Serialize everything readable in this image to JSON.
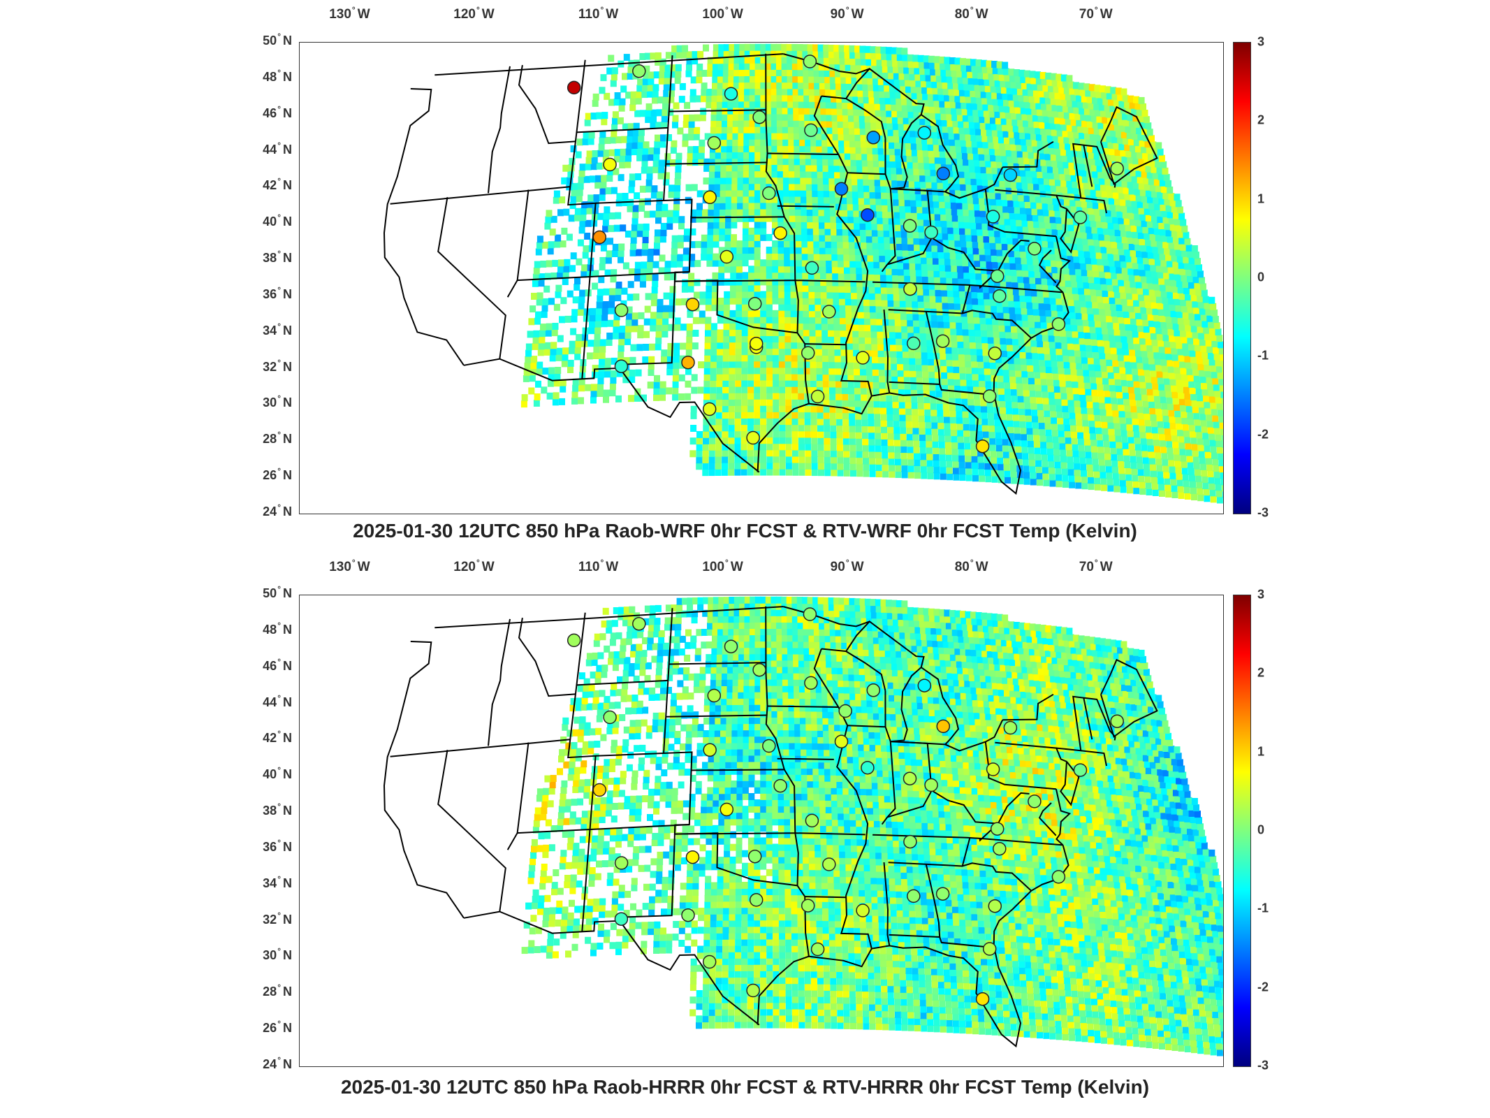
{
  "panels": [
    {
      "id": "top",
      "title": "2025-01-30 12UTC 850 hPa Raob-WRF 0hr FCST & RTV-WRF 0hr FCST Temp (Kelvin)",
      "stations": [
        {
          "lon": -111.6,
          "lat": 47.5,
          "diff": 2.6
        },
        {
          "lon": -108.2,
          "lat": 43.1,
          "diff": 0.7
        },
        {
          "lon": -108.5,
          "lat": 39.1,
          "diff": 1.4
        },
        {
          "lon": -106.6,
          "lat": 35.0,
          "diff": 0.1
        },
        {
          "lon": -106.4,
          "lat": 31.9,
          "diff": -0.5
        },
        {
          "lon": -106.6,
          "lat": 48.2,
          "diff": 0.1
        },
        {
          "lon": -99.3,
          "lat": 46.8,
          "diff": -0.6
        },
        {
          "lon": -97.1,
          "lat": 45.5,
          "diff": 0.0
        },
        {
          "lon": -100.5,
          "lat": 44.1,
          "diff": 0.2
        },
        {
          "lon": -100.7,
          "lat": 41.1,
          "diff": 0.8
        },
        {
          "lon": -96.4,
          "lat": 41.3,
          "diff": 0.0
        },
        {
          "lon": -99.4,
          "lat": 37.8,
          "diff": 0.6
        },
        {
          "lon": -95.6,
          "lat": 39.1,
          "diff": 0.8
        },
        {
          "lon": -101.7,
          "lat": 35.2,
          "diff": 1.0
        },
        {
          "lon": -97.4,
          "lat": 35.2,
          "diff": 0.0
        },
        {
          "lon": -101.9,
          "lat": 32.0,
          "diff": 1.2
        },
        {
          "lon": -97.3,
          "lat": 32.8,
          "diff": 0.7
        },
        {
          "lon": -100.4,
          "lat": 29.4,
          "diff": 0.6
        },
        {
          "lon": -97.5,
          "lat": 27.8,
          "diff": 0.6
        },
        {
          "lon": -93.2,
          "lat": 44.8,
          "diff": -0.1
        },
        {
          "lon": -93.1,
          "lat": 48.6,
          "diff": 0.1
        },
        {
          "lon": -91.1,
          "lat": 41.6,
          "diff": -1.5
        },
        {
          "lon": -89.3,
          "lat": 40.2,
          "diff": -1.8
        },
        {
          "lon": -88.5,
          "lat": 44.5,
          "diff": -1.3
        },
        {
          "lon": -93.4,
          "lat": 37.2,
          "diff": -0.4
        },
        {
          "lon": -92.3,
          "lat": 34.8,
          "diff": 0.2
        },
        {
          "lon": -93.8,
          "lat": 32.5,
          "diff": 0.1
        },
        {
          "lon": -93.2,
          "lat": 30.1,
          "diff": 0.4
        },
        {
          "lon": -90.1,
          "lat": 32.3,
          "diff": 0.6
        },
        {
          "lon": -86.6,
          "lat": 33.2,
          "diff": -0.3
        },
        {
          "lon": -86.6,
          "lat": 36.2,
          "diff": 0.4
        },
        {
          "lon": -84.6,
          "lat": 44.9,
          "diff": -0.8
        },
        {
          "lon": -83.5,
          "lat": 42.7,
          "diff": -1.5
        },
        {
          "lon": -86.3,
          "lat": 39.7,
          "diff": 0.0
        },
        {
          "lon": -84.8,
          "lat": 39.4,
          "diff": -0.4
        },
        {
          "lon": -84.6,
          "lat": 33.4,
          "diff": 0.2
        },
        {
          "lon": -80.2,
          "lat": 40.5,
          "diff": -0.6
        },
        {
          "lon": -78.5,
          "lat": 42.9,
          "diff": -1.0
        },
        {
          "lon": -80.4,
          "lat": 37.2,
          "diff": -0.1
        },
        {
          "lon": -80.4,
          "lat": 36.1,
          "diff": -0.2
        },
        {
          "lon": -81.1,
          "lat": 32.9,
          "diff": 0.4
        },
        {
          "lon": -81.7,
          "lat": 30.5,
          "diff": 0.1
        },
        {
          "lon": -82.4,
          "lat": 27.7,
          "diff": 0.9
        },
        {
          "lon": -77.5,
          "lat": 38.9,
          "diff": 0.0
        },
        {
          "lon": -76.5,
          "lat": 34.8,
          "diff": 0.1
        },
        {
          "lon": -73.8,
          "lat": 40.9,
          "diff": -0.2
        },
        {
          "lon": -70.3,
          "lat": 43.9,
          "diff": 0.2
        },
        {
          "lon": -97.3,
          "lat": 33.0,
          "diff": 0.7
        }
      ]
    },
    {
      "id": "bottom",
      "title": "2025-01-30 12UTC 850 hPa Raob-HRRR 0hr FCST & RTV-HRRR 0hr FCST Temp (Kelvin)",
      "stations": [
        {
          "lon": -111.6,
          "lat": 47.5,
          "diff": 0.2
        },
        {
          "lon": -108.2,
          "lat": 43.1,
          "diff": 0.1
        },
        {
          "lon": -108.5,
          "lat": 39.1,
          "diff": 1.0
        },
        {
          "lon": -106.6,
          "lat": 35.0,
          "diff": 0.2
        },
        {
          "lon": -106.4,
          "lat": 31.9,
          "diff": -0.4
        },
        {
          "lon": -106.6,
          "lat": 48.2,
          "diff": 0.2
        },
        {
          "lon": -99.3,
          "lat": 46.8,
          "diff": 0.1
        },
        {
          "lon": -97.1,
          "lat": 45.5,
          "diff": 0.2
        },
        {
          "lon": -100.5,
          "lat": 44.1,
          "diff": 0.3
        },
        {
          "lon": -100.7,
          "lat": 41.1,
          "diff": 0.5
        },
        {
          "lon": -96.4,
          "lat": 41.3,
          "diff": 0.0
        },
        {
          "lon": -99.4,
          "lat": 37.8,
          "diff": 0.7
        },
        {
          "lon": -95.6,
          "lat": 39.1,
          "diff": 0.1
        },
        {
          "lon": -101.7,
          "lat": 35.2,
          "diff": 0.8
        },
        {
          "lon": -97.4,
          "lat": 35.2,
          "diff": 0.1
        },
        {
          "lon": -101.9,
          "lat": 32.0,
          "diff": 0.1
        },
        {
          "lon": -97.3,
          "lat": 32.8,
          "diff": 0.1
        },
        {
          "lon": -100.4,
          "lat": 29.4,
          "diff": 0.2
        },
        {
          "lon": -97.5,
          "lat": 27.8,
          "diff": 0.3
        },
        {
          "lon": -93.2,
          "lat": 44.8,
          "diff": 0.2
        },
        {
          "lon": -93.1,
          "lat": 48.6,
          "diff": 0.1
        },
        {
          "lon": -91.1,
          "lat": 41.6,
          "diff": 0.6
        },
        {
          "lon": -89.3,
          "lat": 40.2,
          "diff": -0.5
        },
        {
          "lon": -88.5,
          "lat": 44.5,
          "diff": 0.1
        },
        {
          "lon": -93.4,
          "lat": 37.2,
          "diff": 0.2
        },
        {
          "lon": -92.3,
          "lat": 34.8,
          "diff": 0.3
        },
        {
          "lon": -93.8,
          "lat": 32.5,
          "diff": 0.2
        },
        {
          "lon": -93.2,
          "lat": 30.1,
          "diff": 0.2
        },
        {
          "lon": -90.1,
          "lat": 32.3,
          "diff": 0.5
        },
        {
          "lon": -86.6,
          "lat": 33.2,
          "diff": 0.1
        },
        {
          "lon": -86.6,
          "lat": 36.2,
          "diff": 0.1
        },
        {
          "lon": -84.6,
          "lat": 44.9,
          "diff": -0.8
        },
        {
          "lon": -83.5,
          "lat": 42.7,
          "diff": 1.1
        },
        {
          "lon": -86.3,
          "lat": 39.7,
          "diff": 0.3
        },
        {
          "lon": -84.8,
          "lat": 39.4,
          "diff": 0.2
        },
        {
          "lon": -84.6,
          "lat": 33.4,
          "diff": 0.1
        },
        {
          "lon": -80.2,
          "lat": 40.5,
          "diff": 0.5
        },
        {
          "lon": -78.5,
          "lat": 42.9,
          "diff": 0.2
        },
        {
          "lon": -80.4,
          "lat": 37.2,
          "diff": 0.1
        },
        {
          "lon": -80.4,
          "lat": 36.1,
          "diff": 0.2
        },
        {
          "lon": -81.1,
          "lat": 32.9,
          "diff": 0.3
        },
        {
          "lon": -81.7,
          "lat": 30.5,
          "diff": 0.3
        },
        {
          "lon": -82.4,
          "lat": 27.7,
          "diff": 0.9
        },
        {
          "lon": -77.5,
          "lat": 38.9,
          "diff": 0.1
        },
        {
          "lon": -76.5,
          "lat": 34.8,
          "diff": 0.1
        },
        {
          "lon": -73.8,
          "lat": 40.9,
          "diff": -0.1
        },
        {
          "lon": -70.3,
          "lat": 43.9,
          "diff": 0.2
        },
        {
          "lon": -90.7,
          "lat": 43.3,
          "diff": 0.1
        }
      ]
    }
  ],
  "axes": {
    "lon_ticks": [
      {
        "lon": -130,
        "num": "130",
        "hemi": "W"
      },
      {
        "lon": -120,
        "num": "120",
        "hemi": "W"
      },
      {
        "lon": -110,
        "num": "110",
        "hemi": "W"
      },
      {
        "lon": -100,
        "num": "100",
        "hemi": "W"
      },
      {
        "lon": -90,
        "num": "90",
        "hemi": "W"
      },
      {
        "lon": -80,
        "num": "80",
        "hemi": "W"
      },
      {
        "lon": -70,
        "num": "70",
        "hemi": "W"
      }
    ],
    "lat_ticks": [
      {
        "lat": 50,
        "num": "50",
        "hemi": "N"
      },
      {
        "lat": 48,
        "num": "48",
        "hemi": "N"
      },
      {
        "lat": 46,
        "num": "46",
        "hemi": "N"
      },
      {
        "lat": 44,
        "num": "44",
        "hemi": "N"
      },
      {
        "lat": 42,
        "num": "42",
        "hemi": "N"
      },
      {
        "lat": 40,
        "num": "40",
        "hemi": "N"
      },
      {
        "lat": 38,
        "num": "38",
        "hemi": "N"
      },
      {
        "lat": 36,
        "num": "36",
        "hemi": "N"
      },
      {
        "lat": 34,
        "num": "34",
        "hemi": "N"
      },
      {
        "lat": 32,
        "num": "32",
        "hemi": "N"
      },
      {
        "lat": 30,
        "num": "30",
        "hemi": "N"
      },
      {
        "lat": 28,
        "num": "28",
        "hemi": "N"
      },
      {
        "lat": 26,
        "num": "26",
        "hemi": "N"
      },
      {
        "lat": 24,
        "num": "24",
        "hemi": "N"
      }
    ],
    "lon_range": [
      -131,
      -65
    ],
    "lat_range": [
      24,
      50
    ]
  },
  "colorbar": {
    "range": [
      -3,
      3
    ],
    "ticks": [
      "3",
      "2",
      "1",
      "0",
      "-1",
      "-2",
      "-3"
    ],
    "colormap": "jet",
    "colors": [
      "#00007f",
      "#0000ff",
      "#007fff",
      "#00ffff",
      "#7fff7f",
      "#ffff00",
      "#ff7f00",
      "#ff0000",
      "#7f0000"
    ]
  },
  "colors": {
    "state_lines": "#000000",
    "missing": "#ffffff",
    "station_outline": "#222222"
  }
}
